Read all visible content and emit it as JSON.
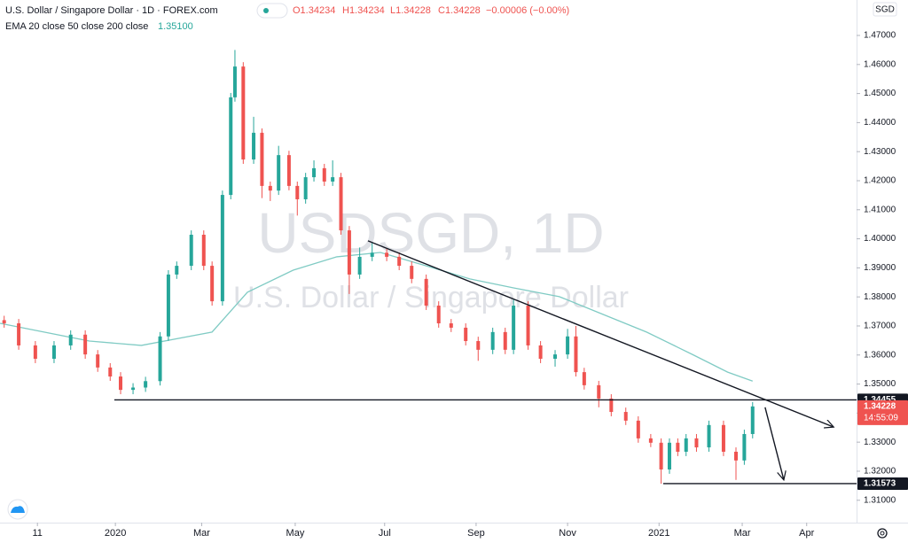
{
  "chart_data": {
    "type": "candlestick",
    "header": {
      "symbol": "U.S. Dollar / Singapore Dollar · 1D · FOREX.com",
      "open": "O1.34234",
      "high": "H1.34234",
      "low": "L1.34228",
      "close": "C1.34228",
      "change": "−0.00006 (−0.00%)"
    },
    "indicator": {
      "name": "EMA 20 close 50 close 200 close",
      "value_label": "1.35100",
      "color": "#80cbc4",
      "x": [
        0,
        43,
        68,
        102,
        119,
        141,
        162,
        183,
        205,
        226,
        247,
        269,
        290,
        311,
        333,
        350,
        362
      ],
      "values": [
        1.3709,
        1.3648,
        1.3633,
        1.3679,
        1.3816,
        1.3892,
        1.3938,
        1.3953,
        1.3907,
        1.3862,
        1.3831,
        1.3801,
        1.374,
        1.3679,
        1.3602,
        1.3541,
        1.351
      ]
    },
    "watermark": {
      "symbol": "USDSGD, 1D",
      "description": "U.S. Dollar / Singapore Dollar"
    },
    "currency": "SGD",
    "up_color": "#26a69a",
    "down_color": "#ef5350",
    "x": [
      2,
      9,
      17,
      26,
      34,
      41,
      47,
      53,
      58,
      64,
      70,
      77,
      81,
      85,
      92,
      98,
      102,
      107,
      111,
      113,
      117,
      122,
      126,
      130,
      134,
      139,
      143,
      147,
      151,
      156,
      160,
      164,
      168,
      173,
      179,
      186,
      192,
      198,
      205,
      211,
      217,
      224,
      230,
      237,
      243,
      247,
      254,
      260,
      267,
      273,
      277,
      281,
      288,
      294,
      301,
      307,
      313,
      318,
      322,
      326,
      330,
      335,
      341,
      348,
      354,
      358,
      362
    ],
    "open": [
      1.372,
      1.3709,
      1.3633,
      1.3587,
      1.3633,
      1.367,
      1.3602,
      1.3557,
      1.3526,
      1.348,
      1.3488,
      1.351,
      1.3664,
      1.3877,
      1.3907,
      1.4014,
      1.3907,
      1.3785,
      1.4151,
      1.4487,
      1.4593,
      1.4273,
      1.4365,
      1.4182,
      1.4166,
      1.4288,
      1.4182,
      1.4136,
      1.4212,
      1.4243,
      1.4197,
      1.4212,
      1.4029,
      1.3877,
      1.3938,
      1.3952,
      1.3938,
      1.3907,
      1.3862,
      1.377,
      1.3709,
      1.3694,
      1.3648,
      1.3618,
      1.3679,
      1.3618,
      1.377,
      1.3633,
      1.3587,
      1.3602,
      1.3664,
      1.3541,
      1.3496,
      1.345,
      1.3404,
      1.3374,
      1.3313,
      1.3298,
      1.3206,
      1.3298,
      1.3267,
      1.3313,
      1.3282,
      1.3359,
      1.3267,
      1.3237,
      1.3328
    ],
    "high": [
      1.3735,
      1.3724,
      1.3648,
      1.3648,
      1.3685,
      1.3685,
      1.3617,
      1.3572,
      1.3541,
      1.3503,
      1.3525,
      1.3679,
      1.3892,
      1.3922,
      1.4029,
      1.4029,
      1.3922,
      1.4166,
      1.4502,
      1.465,
      1.4608,
      1.442,
      1.438,
      1.4197,
      1.432,
      1.4303,
      1.4197,
      1.4227,
      1.427,
      1.4258,
      1.427,
      1.4227,
      1.4044,
      1.397,
      1.3985,
      1.3967,
      1.3953,
      1.3922,
      1.3877,
      1.3785,
      1.3724,
      1.3709,
      1.3663,
      1.3694,
      1.3694,
      1.379,
      1.3785,
      1.3648,
      1.3617,
      1.369,
      1.37,
      1.3556,
      1.3511,
      1.3465,
      1.3419,
      1.3389,
      1.3328,
      1.3313,
      1.3313,
      1.3313,
      1.3328,
      1.3328,
      1.3374,
      1.3374,
      1.3282,
      1.3343,
      1.3438
    ],
    "low": [
      1.3694,
      1.3618,
      1.3572,
      1.3572,
      1.3618,
      1.3587,
      1.3542,
      1.3511,
      1.3465,
      1.3465,
      1.3473,
      1.3495,
      1.3649,
      1.3862,
      1.3892,
      1.3892,
      1.377,
      1.377,
      1.4136,
      1.4472,
      1.4258,
      1.4258,
      1.414,
      1.413,
      1.4151,
      1.4167,
      1.408,
      1.4121,
      1.4197,
      1.4182,
      1.4182,
      1.4014,
      1.381,
      1.3862,
      1.3923,
      1.3923,
      1.3892,
      1.3847,
      1.3755,
      1.3694,
      1.3679,
      1.3633,
      1.358,
      1.3603,
      1.3603,
      1.3603,
      1.3618,
      1.3572,
      1.356,
      1.3587,
      1.3526,
      1.3481,
      1.342,
      1.3389,
      1.3359,
      1.3298,
      1.3283,
      1.3157,
      1.3191,
      1.3252,
      1.3252,
      1.3267,
      1.3267,
      1.3252,
      1.317,
      1.3222,
      1.3313
    ],
    "close": [
      1.3709,
      1.3633,
      1.3587,
      1.3633,
      1.367,
      1.3602,
      1.3557,
      1.3526,
      1.348,
      1.3488,
      1.351,
      1.3664,
      1.3877,
      1.3907,
      1.4014,
      1.3907,
      1.3785,
      1.4151,
      1.4487,
      1.4593,
      1.4273,
      1.4365,
      1.4182,
      1.4166,
      1.4288,
      1.4182,
      1.4136,
      1.4212,
      1.4243,
      1.4197,
      1.4212,
      1.4029,
      1.3877,
      1.3938,
      1.3952,
      1.3938,
      1.3907,
      1.3862,
      1.377,
      1.3709,
      1.3694,
      1.3648,
      1.3618,
      1.3679,
      1.3618,
      1.377,
      1.3633,
      1.3587,
      1.3602,
      1.3664,
      1.3541,
      1.3496,
      1.345,
      1.3404,
      1.3374,
      1.3313,
      1.3298,
      1.3206,
      1.3298,
      1.3267,
      1.3313,
      1.3282,
      1.3359,
      1.3267,
      1.3237,
      1.3328,
      1.3423
    ],
    "xlim": [
      0,
      412
    ],
    "xticks": [
      {
        "value": 18,
        "label": "11"
      },
      {
        "value": 55.5,
        "label": "2020"
      },
      {
        "value": 97,
        "label": "Mar"
      },
      {
        "value": 142,
        "label": "May"
      },
      {
        "value": 185,
        "label": "Jul"
      },
      {
        "value": 229,
        "label": "Sep"
      },
      {
        "value": 273,
        "label": "Nov"
      },
      {
        "value": 317,
        "label": "2021"
      },
      {
        "value": 357,
        "label": "Mar"
      },
      {
        "value": 388,
        "label": "Apr"
      }
    ],
    "ylim": [
      1.3023,
      1.4822
    ],
    "yticks": [
      {
        "value": 1.31,
        "label": "1.31000"
      },
      {
        "value": 1.32,
        "label": "1.32000"
      },
      {
        "value": 1.33,
        "label": "1.33000"
      },
      {
        "value": 1.34,
        "label": "1.34000"
      },
      {
        "value": 1.35,
        "label": "1.35000"
      },
      {
        "value": 1.36,
        "label": "1.36000"
      },
      {
        "value": 1.37,
        "label": "1.37000"
      },
      {
        "value": 1.38,
        "label": "1.38000"
      },
      {
        "value": 1.39,
        "label": "1.39000"
      },
      {
        "value": 1.4,
        "label": "1.40000"
      },
      {
        "value": 1.41,
        "label": "1.41000"
      },
      {
        "value": 1.42,
        "label": "1.42000"
      },
      {
        "value": 1.43,
        "label": "1.43000"
      },
      {
        "value": 1.44,
        "label": "1.44000"
      },
      {
        "value": 1.45,
        "label": "1.45000"
      },
      {
        "value": 1.46,
        "label": "1.46000"
      },
      {
        "value": 1.47,
        "label": "1.47000"
      }
    ],
    "drawings": [
      {
        "x": [
          55,
          412
        ],
        "y": [
          1.34455,
          1.34455
        ],
        "arrow": false
      },
      {
        "x": [
          319,
          412
        ],
        "y": [
          1.31573,
          1.31573
        ],
        "arrow": false
      },
      {
        "x": [
          177,
          401
        ],
        "y": [
          1.3993,
          1.3352
        ],
        "arrow": true
      },
      {
        "x": [
          368,
          377
        ],
        "y": [
          1.342,
          1.317
        ],
        "arrow": true
      }
    ],
    "price_labels": [
      {
        "value": 1.34455,
        "color": "#131722"
      },
      {
        "value": 1.34228,
        "color": "#ef5350",
        "countdown": "14:55:09"
      },
      {
        "value": 1.31573,
        "color": "#131722"
      }
    ]
  }
}
